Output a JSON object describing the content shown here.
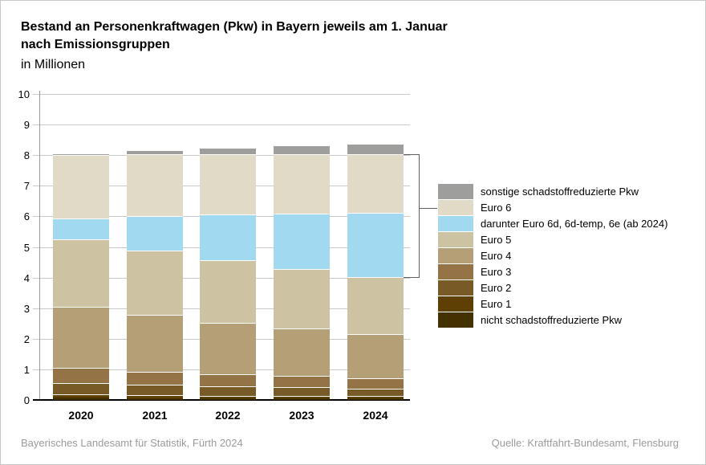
{
  "header": {
    "title": "Bestand an Personenkraftwagen (Pkw) in Bayern jeweils am 1. Januar\nnach Emissionsgruppen",
    "subtitle": "in Millionen"
  },
  "footer": {
    "left": "Bayerisches Landesamt für Statistik, Fürth 2024",
    "right": "Quelle: Kraftfahrt-Bundesamt, Flensburg"
  },
  "colors": {
    "grid": "#c9c9c9",
    "axis": "#000000",
    "bracket": "#5f5f5f",
    "footer_text": "#9a9a9a"
  },
  "chart_data": {
    "type": "bar",
    "stacked": true,
    "title": "Bestand an Personenkraftwagen (Pkw) in Bayern jeweils am 1. Januar nach Emissionsgruppen",
    "unit_label": "in Millionen",
    "categories": [
      "2020",
      "2021",
      "2022",
      "2023",
      "2024"
    ],
    "series": [
      {
        "name": "nicht schadstoffreduzierte Pkw",
        "color": "#433102",
        "values": [
          0.07,
          0.06,
          0.06,
          0.05,
          0.05
        ]
      },
      {
        "name": "Euro 1",
        "color": "#5e4004",
        "values": [
          0.12,
          0.1,
          0.08,
          0.08,
          0.07
        ]
      },
      {
        "name": "Euro 2",
        "color": "#785a26",
        "values": [
          0.37,
          0.34,
          0.31,
          0.28,
          0.24
        ]
      },
      {
        "name": "Euro 3",
        "color": "#947347",
        "values": [
          0.49,
          0.43,
          0.38,
          0.37,
          0.36
        ]
      },
      {
        "name": "Euro 4",
        "color": "#b49f77",
        "values": [
          2.0,
          1.85,
          1.7,
          1.56,
          1.43
        ]
      },
      {
        "name": "Euro 5",
        "color": "#cdc2a1",
        "values": [
          2.21,
          2.1,
          2.03,
          1.94,
          1.86
        ]
      },
      {
        "name": "darunter Euro 6d, 6d-temp, 6e (ab 2024)",
        "color": "#a1daf0",
        "values": [
          0.67,
          1.12,
          1.5,
          1.81,
          2.1
        ]
      },
      {
        "name": "Euro 6",
        "color": "#e1dac7",
        "values": [
          2.07,
          2.02,
          1.97,
          1.94,
          1.91
        ]
      },
      {
        "name": "sonstige schadstoffreduzierte Pkw",
        "color": "#9e9e9c",
        "values": [
          0.07,
          0.13,
          0.21,
          0.28,
          0.34
        ]
      }
    ],
    "legend_order_top_to_bottom": [
      "sonstige schadstoffreduzierte Pkw",
      "Euro 6",
      "darunter Euro 6d, 6d-temp, 6e (ab 2024)",
      "Euro 5",
      "Euro 4",
      "Euro 3",
      "Euro 2",
      "Euro 1",
      "nicht schadstoffreduzierte Pkw"
    ],
    "ylabel": "",
    "xlabel": "",
    "ylim": [
      0,
      10
    ],
    "yticks": [
      0,
      1,
      2,
      3,
      4,
      5,
      6,
      7,
      8,
      9,
      10
    ],
    "grid": true,
    "legend_position": "right",
    "annotation_bracket": {
      "category": "2024",
      "from_value": 4.01,
      "to_value": 8.02,
      "links_to_legend_entry": "Euro 6"
    }
  }
}
